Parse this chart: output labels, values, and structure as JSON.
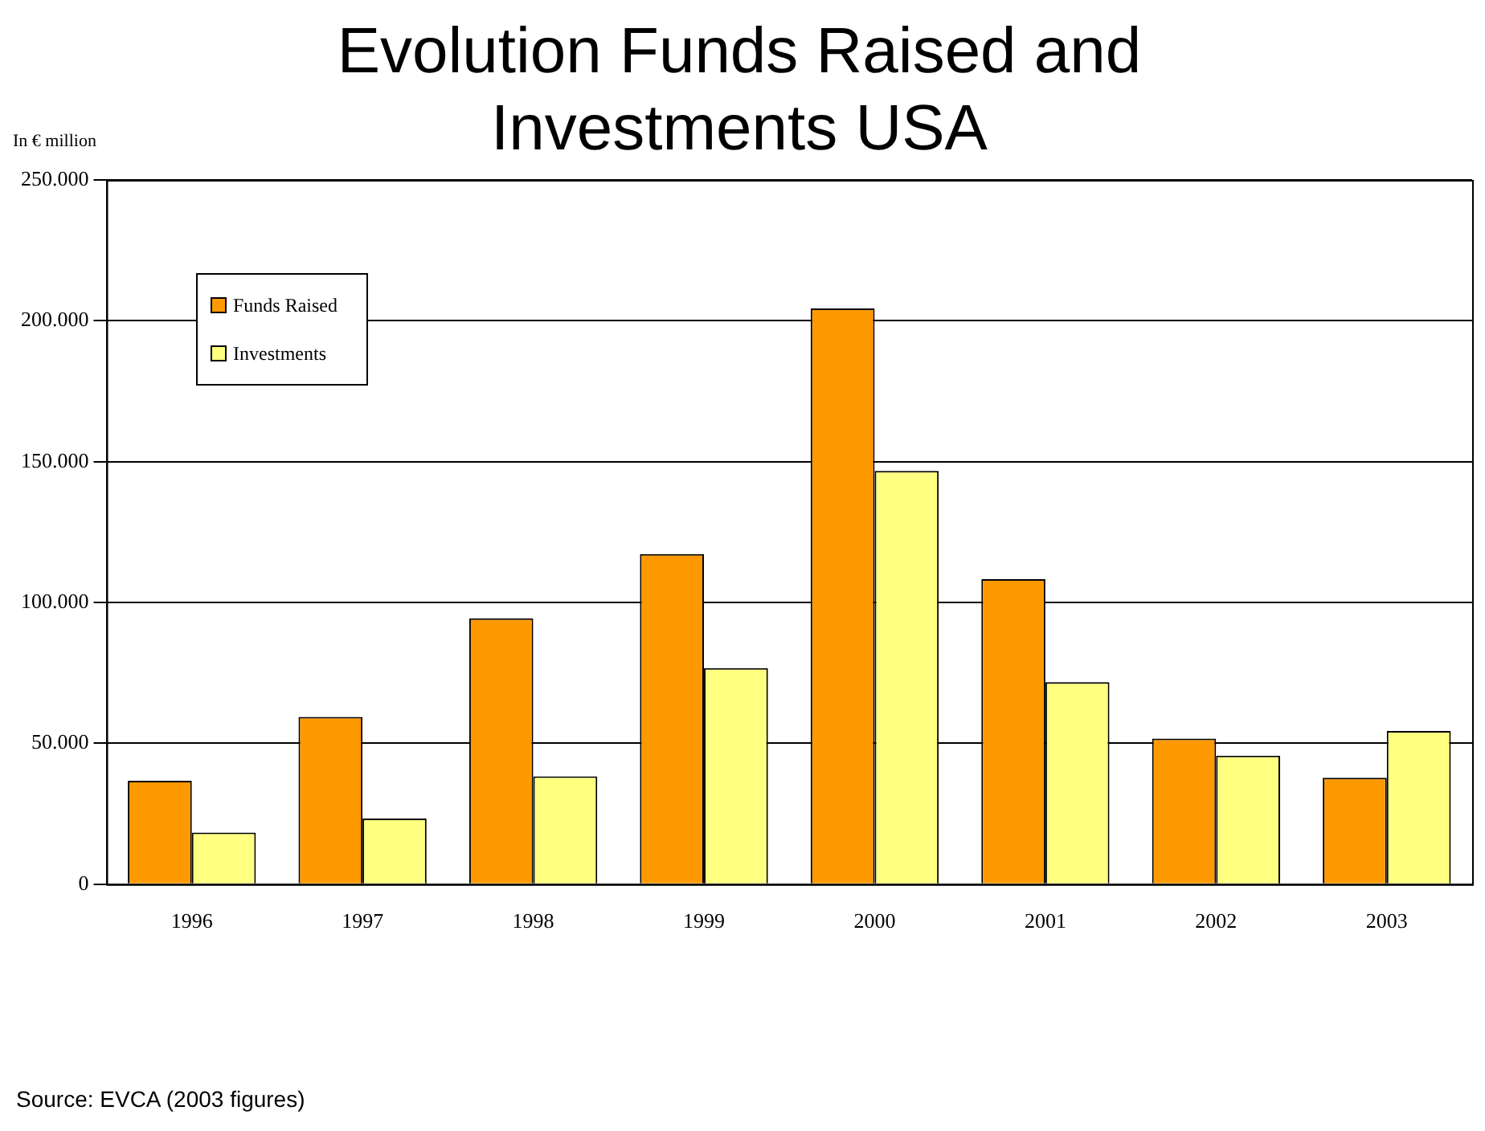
{
  "chart_data": {
    "type": "bar",
    "title": "Evolution Funds Raised and Investments USA",
    "ylabel": "In € million",
    "categories": [
      "1996",
      "1997",
      "1998",
      "1999",
      "2000",
      "2001",
      "2002",
      "2003"
    ],
    "series": [
      {
        "name": "Funds Raised",
        "color": "#ff9900",
        "values": [
          36700,
          59400,
          94400,
          117200,
          204400,
          108300,
          51700,
          37800
        ]
      },
      {
        "name": "Investments",
        "color": "#ffff80",
        "values": [
          18300,
          23300,
          38300,
          76700,
          146700,
          71700,
          45600,
          54400
        ]
      }
    ],
    "ylim": [
      0,
      250000
    ],
    "yticks": [
      {
        "value": 0,
        "label": "0"
      },
      {
        "value": 50000,
        "label": "50.000"
      },
      {
        "value": 100000,
        "label": "100.000"
      },
      {
        "value": 150000,
        "label": "150.000"
      },
      {
        "value": 200000,
        "label": "200.000"
      },
      {
        "value": 250000,
        "label": "250.000"
      }
    ],
    "grid": "y",
    "legend": "top left",
    "annotations": [
      "Source: EVCA (2003 figures)"
    ]
  }
}
